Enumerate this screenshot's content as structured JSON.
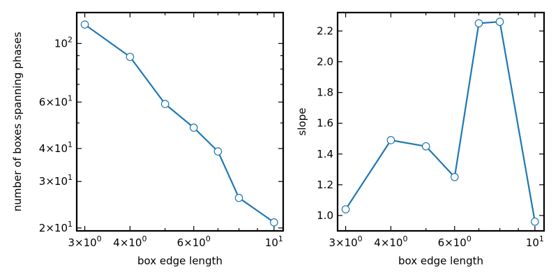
{
  "chart_data": [
    {
      "type": "line",
      "xscale": "log",
      "yscale": "log",
      "xlabel": "box edge length",
      "ylabel": "number of boxes spanning phases",
      "xlim": [
        2.85,
        10.6
      ],
      "ylim": [
        19.5,
        131
      ],
      "grid": false,
      "series": [
        {
          "name": "number of boxes spanning phases",
          "color": "#1f77b4",
          "marker_face": "#ffffff",
          "x": [
            3,
            4,
            5,
            6,
            7,
            8,
            10
          ],
          "y": [
            118,
            89,
            59,
            48,
            39,
            26,
            21
          ]
        }
      ],
      "xticks": [
        {
          "value": 3,
          "base": "3",
          "mult": "×",
          "ten": "10",
          "exp": "0"
        },
        {
          "value": 4,
          "base": "4",
          "mult": "×",
          "ten": "10",
          "exp": "0"
        },
        {
          "value": 6,
          "base": "6",
          "mult": "×",
          "ten": "10",
          "exp": "0"
        },
        {
          "value": 10,
          "base": "",
          "mult": "",
          "ten": "10",
          "exp": "1"
        }
      ],
      "yticks": [
        {
          "value": 20,
          "base": "2",
          "mult": "×",
          "ten": "10",
          "exp": "1"
        },
        {
          "value": 30,
          "base": "3",
          "mult": "×",
          "ten": "10",
          "exp": "1"
        },
        {
          "value": 40,
          "base": "4",
          "mult": "×",
          "ten": "10",
          "exp": "1"
        },
        {
          "value": 60,
          "base": "6",
          "mult": "×",
          "ten": "10",
          "exp": "1"
        },
        {
          "value": 100,
          "base": "",
          "mult": "",
          "ten": "10",
          "exp": "2"
        }
      ],
      "x_minor_ticks": [
        5,
        7,
        8,
        9
      ],
      "y_minor_ticks": [
        50,
        70,
        80,
        90
      ]
    },
    {
      "type": "line",
      "xscale": "log",
      "yscale": "linear",
      "xlabel": "box edge length",
      "ylabel": "slope",
      "xlim": [
        2.85,
        10.6
      ],
      "ylim": [
        0.9,
        2.32
      ],
      "grid": false,
      "series": [
        {
          "name": "slope",
          "color": "#1f77b4",
          "marker_face": "#ffffff",
          "x": [
            3,
            4,
            5,
            6,
            7,
            8,
            10
          ],
          "y": [
            1.04,
            1.49,
            1.45,
            1.25,
            2.25,
            2.26,
            0.96
          ]
        }
      ],
      "xticks": [
        {
          "value": 3,
          "base": "3",
          "mult": "×",
          "ten": "10",
          "exp": "0"
        },
        {
          "value": 4,
          "base": "4",
          "mult": "×",
          "ten": "10",
          "exp": "0"
        },
        {
          "value": 6,
          "base": "6",
          "mult": "×",
          "ten": "10",
          "exp": "0"
        },
        {
          "value": 10,
          "base": "",
          "mult": "",
          "ten": "10",
          "exp": "1"
        }
      ],
      "yticks": [
        {
          "value": 1.0,
          "label": "1.0"
        },
        {
          "value": 1.2,
          "label": "1.2"
        },
        {
          "value": 1.4,
          "label": "1.4"
        },
        {
          "value": 1.6,
          "label": "1.6"
        },
        {
          "value": 1.8,
          "label": "1.8"
        },
        {
          "value": 2.0,
          "label": "2.0"
        },
        {
          "value": 2.2,
          "label": "2.2"
        }
      ],
      "x_minor_ticks": [
        5,
        7,
        8,
        9
      ],
      "y_minor_ticks": []
    }
  ]
}
